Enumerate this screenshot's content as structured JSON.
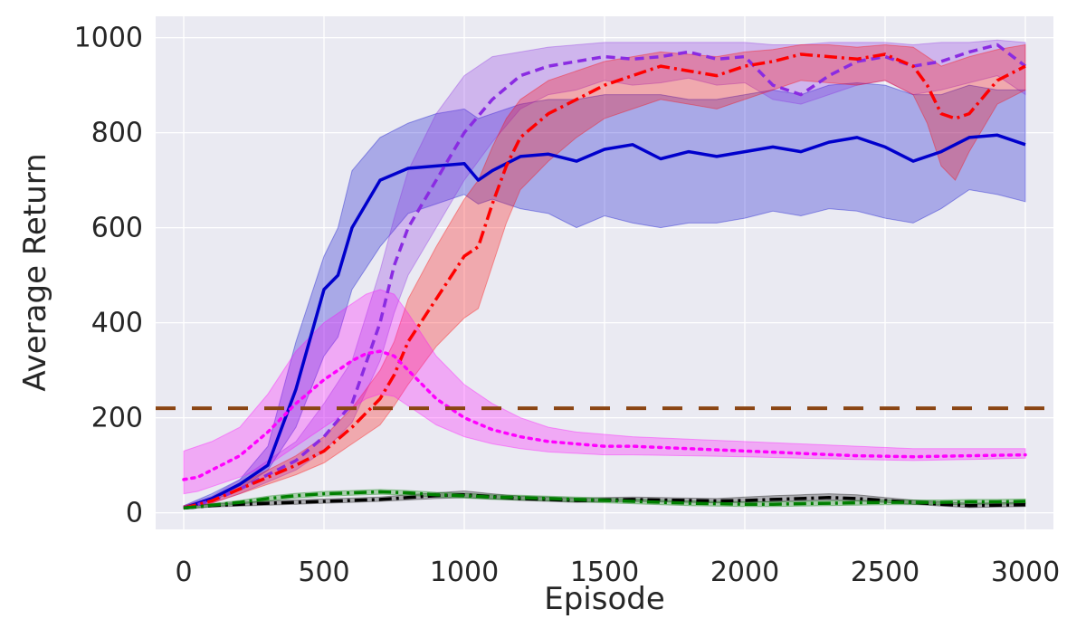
{
  "chart_data": {
    "type": "line",
    "title": "",
    "xlabel": "Episode",
    "ylabel": "Average Return",
    "xlim": [
      -100,
      3100
    ],
    "ylim": [
      -35,
      1045
    ],
    "xticks": [
      0,
      500,
      1000,
      1500,
      2000,
      2500,
      3000
    ],
    "yticks": [
      0,
      200,
      400,
      600,
      800,
      1000
    ],
    "xtick_labels": [
      "0",
      "500",
      "1000",
      "1500",
      "2000",
      "2500",
      "3000"
    ],
    "ytick_labels": [
      "0",
      "200",
      "400",
      "600",
      "800",
      "1000"
    ],
    "grid": true,
    "legend": "none",
    "background_color": "#eaeaf2",
    "grid_color": "#ffffff",
    "series": [
      {
        "color": "#0000cc",
        "dash": "solid",
        "band": true,
        "x": [
          0,
          100,
          200,
          300,
          400,
          500,
          550,
          600,
          700,
          800,
          900,
          1000,
          1050,
          1100,
          1200,
          1300,
          1400,
          1500,
          1600,
          1700,
          1800,
          1900,
          2000,
          2100,
          2200,
          2300,
          2400,
          2500,
          2600,
          2700,
          2800,
          2900,
          3000
        ],
        "y": [
          10,
          30,
          60,
          100,
          260,
          470,
          500,
          600,
          700,
          725,
          730,
          735,
          700,
          720,
          750,
          755,
          740,
          765,
          775,
          745,
          760,
          750,
          760,
          770,
          760,
          780,
          790,
          770,
          740,
          760,
          790,
          795,
          775
        ],
        "lower": [
          10,
          25,
          50,
          90,
          180,
          330,
          370,
          470,
          560,
          630,
          650,
          670,
          650,
          660,
          640,
          630,
          600,
          625,
          610,
          600,
          610,
          610,
          620,
          635,
          625,
          640,
          635,
          620,
          610,
          640,
          680,
          670,
          655
        ],
        "upper": [
          15,
          40,
          70,
          140,
          360,
          540,
          600,
          720,
          790,
          820,
          840,
          850,
          830,
          840,
          860,
          870,
          870,
          880,
          880,
          880,
          870,
          870,
          880,
          890,
          880,
          900,
          905,
          900,
          880,
          880,
          900,
          890,
          890
        ]
      },
      {
        "color": "#8a2be2",
        "dash": "dashed",
        "band": true,
        "x": [
          0,
          100,
          200,
          300,
          400,
          500,
          600,
          700,
          750,
          800,
          900,
          1000,
          1100,
          1200,
          1300,
          1400,
          1500,
          1600,
          1700,
          1800,
          1900,
          2000,
          2100,
          2200,
          2300,
          2400,
          2500,
          2600,
          2700,
          2800,
          2900,
          3000
        ],
        "y": [
          10,
          25,
          50,
          80,
          110,
          160,
          230,
          400,
          520,
          600,
          700,
          800,
          870,
          920,
          940,
          950,
          960,
          955,
          960,
          970,
          955,
          960,
          900,
          880,
          920,
          950,
          960,
          940,
          950,
          970,
          985,
          940
        ],
        "lower": [
          10,
          20,
          40,
          65,
          90,
          130,
          190,
          320,
          420,
          500,
          600,
          700,
          780,
          850,
          880,
          890,
          910,
          900,
          905,
          915,
          900,
          905,
          870,
          860,
          880,
          900,
          910,
          880,
          890,
          905,
          920,
          880
        ],
        "upper": [
          15,
          35,
          70,
          110,
          150,
          230,
          320,
          510,
          620,
          720,
          840,
          920,
          960,
          970,
          980,
          985,
          990,
          990,
          990,
          990,
          990,
          990,
          985,
          985,
          990,
          990,
          990,
          985,
          990,
          990,
          995,
          990
        ]
      },
      {
        "color": "#ff0000",
        "dash": "dashdot",
        "band": true,
        "x": [
          0,
          100,
          200,
          300,
          400,
          500,
          600,
          700,
          750,
          800,
          900,
          1000,
          1050,
          1100,
          1150,
          1200,
          1300,
          1400,
          1500,
          1600,
          1700,
          1800,
          1900,
          2000,
          2100,
          2200,
          2300,
          2400,
          2500,
          2600,
          2650,
          2700,
          2750,
          2800,
          2900,
          3000
        ],
        "y": [
          10,
          25,
          50,
          75,
          100,
          130,
          180,
          240,
          290,
          360,
          450,
          540,
          560,
          650,
          730,
          790,
          840,
          870,
          900,
          920,
          940,
          930,
          920,
          940,
          950,
          965,
          960,
          955,
          965,
          940,
          900,
          840,
          830,
          840,
          910,
          940
        ],
        "lower": [
          10,
          20,
          40,
          60,
          80,
          105,
          145,
          185,
          225,
          270,
          350,
          410,
          430,
          520,
          610,
          680,
          740,
          790,
          830,
          850,
          870,
          860,
          850,
          870,
          890,
          910,
          905,
          900,
          910,
          880,
          820,
          730,
          700,
          760,
          860,
          890
        ],
        "upper": [
          15,
          30,
          60,
          90,
          120,
          160,
          220,
          300,
          360,
          450,
          560,
          660,
          700,
          770,
          830,
          870,
          910,
          930,
          950,
          960,
          970,
          965,
          960,
          970,
          975,
          985,
          985,
          980,
          985,
          980,
          960,
          940,
          950,
          960,
          975,
          985
        ]
      },
      {
        "color": "#ff00ff",
        "dash": "dotted",
        "band": true,
        "x": [
          0,
          50,
          100,
          200,
          300,
          400,
          500,
          600,
          650,
          700,
          750,
          800,
          900,
          1000,
          1100,
          1200,
          1300,
          1400,
          1500,
          1600,
          1800,
          2000,
          2200,
          2400,
          2600,
          2800,
          3000
        ],
        "y": [
          70,
          75,
          90,
          120,
          170,
          230,
          280,
          320,
          335,
          340,
          330,
          300,
          240,
          200,
          175,
          160,
          150,
          145,
          140,
          140,
          135,
          130,
          125,
          120,
          118,
          120,
          122
        ],
        "lower": [
          40,
          45,
          55,
          75,
          100,
          140,
          180,
          220,
          240,
          250,
          245,
          225,
          185,
          160,
          145,
          135,
          128,
          125,
          122,
          122,
          120,
          118,
          115,
          112,
          110,
          112,
          115
        ],
        "upper": [
          130,
          140,
          150,
          180,
          250,
          340,
          400,
          440,
          460,
          470,
          460,
          420,
          330,
          270,
          230,
          200,
          180,
          170,
          165,
          160,
          155,
          150,
          145,
          140,
          135,
          135,
          135
        ]
      },
      {
        "color": "#000000",
        "dash": "dashdot",
        "band": true,
        "x": [
          0,
          100,
          200,
          300,
          400,
          500,
          600,
          700,
          800,
          900,
          1000,
          1100,
          1200,
          1300,
          1400,
          1500,
          1600,
          1700,
          1800,
          1900,
          2000,
          2100,
          2200,
          2300,
          2400,
          2500,
          2600,
          2700,
          2800,
          2900,
          3000
        ],
        "y": [
          10,
          15,
          18,
          20,
          22,
          24,
          26,
          28,
          32,
          36,
          38,
          34,
          30,
          28,
          26,
          27,
          28,
          27,
          26,
          25,
          26,
          28,
          30,
          32,
          30,
          26,
          22,
          18,
          15,
          16,
          17
        ],
        "lower": [
          8,
          12,
          14,
          16,
          18,
          20,
          22,
          24,
          27,
          30,
          32,
          29,
          26,
          24,
          22,
          23,
          24,
          23,
          22,
          21,
          22,
          23,
          25,
          27,
          25,
          22,
          18,
          14,
          11,
          12,
          13
        ],
        "upper": [
          13,
          18,
          22,
          25,
          27,
          29,
          31,
          33,
          38,
          42,
          46,
          40,
          35,
          33,
          31,
          32,
          33,
          32,
          31,
          30,
          33,
          36,
          38,
          40,
          38,
          32,
          27,
          23,
          20,
          21,
          22
        ]
      },
      {
        "color": "#007f00",
        "dash": "dashdot",
        "band": true,
        "x": [
          0,
          100,
          200,
          300,
          400,
          500,
          600,
          700,
          800,
          900,
          1000,
          1100,
          1200,
          1300,
          1400,
          1500,
          1600,
          1700,
          1800,
          1900,
          2000,
          2100,
          2200,
          2300,
          2400,
          2500,
          2600,
          2700,
          2800,
          2900,
          3000
        ],
        "y": [
          10,
          16,
          22,
          30,
          36,
          40,
          42,
          44,
          42,
          38,
          36,
          33,
          32,
          30,
          28,
          26,
          24,
          22,
          20,
          19,
          18,
          18,
          19,
          20,
          21,
          22,
          22,
          22,
          23,
          23,
          24
        ],
        "lower": [
          8,
          13,
          18,
          25,
          31,
          35,
          37,
          39,
          37,
          33,
          31,
          28,
          27,
          25,
          23,
          21,
          19,
          17,
          15,
          14,
          13,
          13,
          14,
          15,
          16,
          17,
          17,
          17,
          18,
          18,
          19
        ],
        "upper": [
          12,
          19,
          26,
          35,
          41,
          45,
          47,
          49,
          47,
          43,
          41,
          38,
          37,
          35,
          33,
          31,
          29,
          27,
          25,
          24,
          23,
          23,
          24,
          25,
          26,
          27,
          27,
          27,
          28,
          28,
          29
        ]
      },
      {
        "color": "#8b4513",
        "dash": "longdash",
        "band": false,
        "x": [
          -100,
          3100
        ],
        "y": [
          220,
          220
        ]
      }
    ]
  }
}
